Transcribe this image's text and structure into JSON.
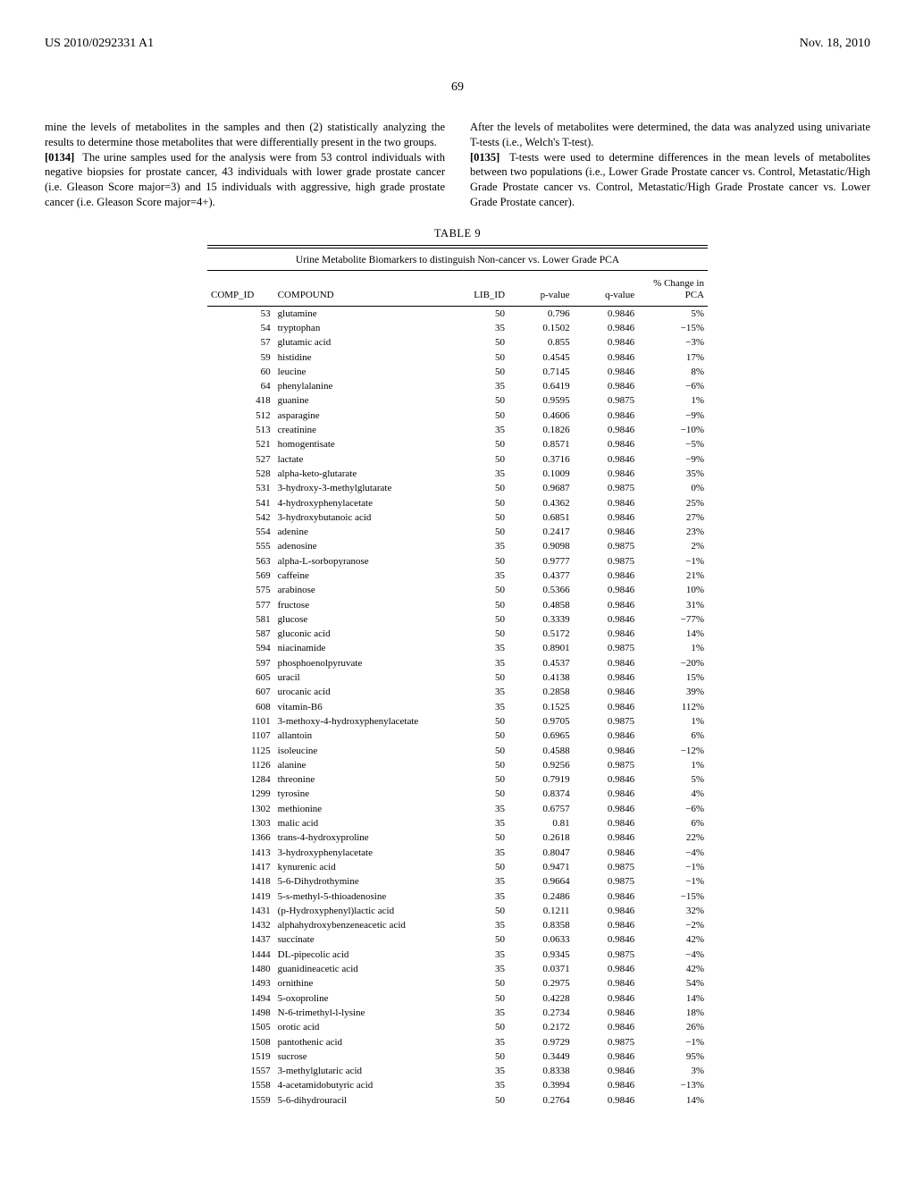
{
  "header": {
    "left": "US 2010/0292331 A1",
    "right": "Nov. 18, 2010"
  },
  "page_number": "69",
  "left_column": {
    "p1_cont": "mine the levels of metabolites in the samples and then (2) statistically analyzing the results to determine those metabolites that were differentially present in the two groups.",
    "p2_label": "[0134]",
    "p2_text": "The urine samples used for the analysis were from 53 control individuals with negative biopsies for prostate cancer, 43 individuals with lower grade prostate cancer (i.e. Gleason Score major=3) and 15 individuals with aggressive, high grade prostate cancer (i.e. Gleason Score major=4+)."
  },
  "right_column": {
    "p1": "After the levels of metabolites were determined, the data was analyzed using univariate T-tests (i.e., Welch's T-test).",
    "p2_label": "[0135]",
    "p2_text": "T-tests were used to determine differences in the mean levels of metabolites between two populations (i.e., Lower Grade Prostate cancer vs. Control, Metastatic/High Grade Prostate cancer vs. Control, Metastatic/High Grade Prostate cancer vs. Lower Grade Prostate cancer)."
  },
  "table": {
    "label": "TABLE 9",
    "subtitle": "Urine Metabolite Biomarkers to distinguish Non-cancer vs. Lower Grade PCA",
    "columns": [
      "COMP_ID",
      "COMPOUND",
      "LIB_ID",
      "p-value",
      "q-value",
      "% Change in PCA"
    ],
    "rows": [
      [
        "53",
        "glutamine",
        "50",
        "0.796",
        "0.9846",
        "5%"
      ],
      [
        "54",
        "tryptophan",
        "35",
        "0.1502",
        "0.9846",
        "−15%"
      ],
      [
        "57",
        "glutamic acid",
        "50",
        "0.855",
        "0.9846",
        "−3%"
      ],
      [
        "59",
        "histidine",
        "50",
        "0.4545",
        "0.9846",
        "17%"
      ],
      [
        "60",
        "leucine",
        "50",
        "0.7145",
        "0.9846",
        "8%"
      ],
      [
        "64",
        "phenylalanine",
        "35",
        "0.6419",
        "0.9846",
        "−6%"
      ],
      [
        "418",
        "guanine",
        "50",
        "0.9595",
        "0.9875",
        "1%"
      ],
      [
        "512",
        "asparagine",
        "50",
        "0.4606",
        "0.9846",
        "−9%"
      ],
      [
        "513",
        "creatinine",
        "35",
        "0.1826",
        "0.9846",
        "−10%"
      ],
      [
        "521",
        "homogentisate",
        "50",
        "0.8571",
        "0.9846",
        "−5%"
      ],
      [
        "527",
        "lactate",
        "50",
        "0.3716",
        "0.9846",
        "−9%"
      ],
      [
        "528",
        "alpha-keto-glutarate",
        "35",
        "0.1009",
        "0.9846",
        "35%"
      ],
      [
        "531",
        "3-hydroxy-3-methylglutarate",
        "50",
        "0.9687",
        "0.9875",
        "0%"
      ],
      [
        "541",
        "4-hydroxyphenylacetate",
        "50",
        "0.4362",
        "0.9846",
        "25%"
      ],
      [
        "542",
        "3-hydroxybutanoic acid",
        "50",
        "0.6851",
        "0.9846",
        "27%"
      ],
      [
        "554",
        "adenine",
        "50",
        "0.2417",
        "0.9846",
        "23%"
      ],
      [
        "555",
        "adenosine",
        "35",
        "0.9098",
        "0.9875",
        "2%"
      ],
      [
        "563",
        "alpha-L-sorbopyranose",
        "50",
        "0.9777",
        "0.9875",
        "−1%"
      ],
      [
        "569",
        "caffeine",
        "35",
        "0.4377",
        "0.9846",
        "21%"
      ],
      [
        "575",
        "arabinose",
        "50",
        "0.5366",
        "0.9846",
        "10%"
      ],
      [
        "577",
        "fructose",
        "50",
        "0.4858",
        "0.9846",
        "31%"
      ],
      [
        "581",
        "glucose",
        "50",
        "0.3339",
        "0.9846",
        "−77%"
      ],
      [
        "587",
        "gluconic acid",
        "50",
        "0.5172",
        "0.9846",
        "14%"
      ],
      [
        "594",
        "niacinamide",
        "35",
        "0.8901",
        "0.9875",
        "1%"
      ],
      [
        "597",
        "phosphoenolpyruvate",
        "35",
        "0.4537",
        "0.9846",
        "−20%"
      ],
      [
        "605",
        "uracil",
        "50",
        "0.4138",
        "0.9846",
        "15%"
      ],
      [
        "607",
        "urocanic acid",
        "35",
        "0.2858",
        "0.9846",
        "39%"
      ],
      [
        "608",
        "vitamin-B6",
        "35",
        "0.1525",
        "0.9846",
        "112%"
      ],
      [
        "1101",
        "3-methoxy-4-hydroxyphenylacetate",
        "50",
        "0.9705",
        "0.9875",
        "1%"
      ],
      [
        "1107",
        "allantoin",
        "50",
        "0.6965",
        "0.9846",
        "6%"
      ],
      [
        "1125",
        "isoleucine",
        "50",
        "0.4588",
        "0.9846",
        "−12%"
      ],
      [
        "1126",
        "alanine",
        "50",
        "0.9256",
        "0.9875",
        "1%"
      ],
      [
        "1284",
        "threonine",
        "50",
        "0.7919",
        "0.9846",
        "5%"
      ],
      [
        "1299",
        "tyrosine",
        "50",
        "0.8374",
        "0.9846",
        "4%"
      ],
      [
        "1302",
        "methionine",
        "35",
        "0.6757",
        "0.9846",
        "−6%"
      ],
      [
        "1303",
        "malic acid",
        "35",
        "0.81",
        "0.9846",
        "6%"
      ],
      [
        "1366",
        "trans-4-hydroxyproline",
        "50",
        "0.2618",
        "0.9846",
        "22%"
      ],
      [
        "1413",
        "3-hydroxyphenylacetate",
        "35",
        "0.8047",
        "0.9846",
        "−4%"
      ],
      [
        "1417",
        "kynurenic acid",
        "50",
        "0.9471",
        "0.9875",
        "−1%"
      ],
      [
        "1418",
        "5-6-Dihydrothymine",
        "35",
        "0.9664",
        "0.9875",
        "−1%"
      ],
      [
        "1419",
        "5-s-methyl-5-thioadenosine",
        "35",
        "0.2486",
        "0.9846",
        "−15%"
      ],
      [
        "1431",
        "(p-Hydroxyphenyl)lactic acid",
        "50",
        "0.1211",
        "0.9846",
        "32%"
      ],
      [
        "1432",
        "alphahydroxybenzeneacetic acid",
        "35",
        "0.8358",
        "0.9846",
        "−2%"
      ],
      [
        "1437",
        "succinate",
        "50",
        "0.0633",
        "0.9846",
        "42%"
      ],
      [
        "1444",
        "DL-pipecolic acid",
        "35",
        "0.9345",
        "0.9875",
        "−4%"
      ],
      [
        "1480",
        "guanidineacetic acid",
        "35",
        "0.0371",
        "0.9846",
        "42%"
      ],
      [
        "1493",
        "ornithine",
        "50",
        "0.2975",
        "0.9846",
        "54%"
      ],
      [
        "1494",
        "5-oxoproline",
        "50",
        "0.4228",
        "0.9846",
        "14%"
      ],
      [
        "1498",
        "N-6-trimethyl-l-lysine",
        "35",
        "0.2734",
        "0.9846",
        "18%"
      ],
      [
        "1505",
        "orotic acid",
        "50",
        "0.2172",
        "0.9846",
        "26%"
      ],
      [
        "1508",
        "pantothenic acid",
        "35",
        "0.9729",
        "0.9875",
        "−1%"
      ],
      [
        "1519",
        "sucrose",
        "50",
        "0.3449",
        "0.9846",
        "95%"
      ],
      [
        "1557",
        "3-methylglutaric acid",
        "35",
        "0.8338",
        "0.9846",
        "3%"
      ],
      [
        "1558",
        "4-acetamidobutyric acid",
        "35",
        "0.3994",
        "0.9846",
        "−13%"
      ],
      [
        "1559",
        "5-6-dihydrouracil",
        "50",
        "0.2764",
        "0.9846",
        "14%"
      ]
    ]
  }
}
